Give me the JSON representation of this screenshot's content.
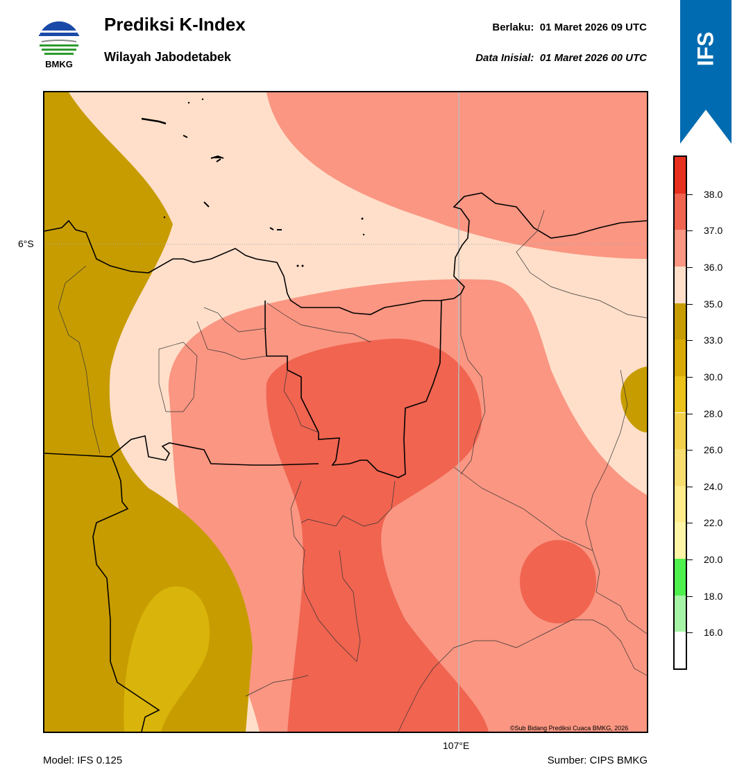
{
  "header": {
    "title": "Prediksi K-Index",
    "subtitle": "Wilayah Jabodetabek",
    "valid_label": "Berlaku:",
    "valid_time": "01 Maret 2026 09 UTC",
    "init_label": "Data Inisial:",
    "init_time": "01 Maret 2026 00 UTC"
  },
  "logo": {
    "text": "BMKG",
    "icon": "bmkg-logo-icon"
  },
  "ribbon": {
    "label": "IFS",
    "color": "#006bb0"
  },
  "map": {
    "lat_label": "6°S",
    "lon_label": "107°E",
    "copyright": "©Sub Bidang Prediksi Cuaca BMKG, 2026"
  },
  "footer": {
    "model": "Model: IFS 0.125",
    "source": "Sumber: CIPS BMKG"
  },
  "colorbar": {
    "ticks": [
      "16.0",
      "18.0",
      "20.0",
      "22.0",
      "24.0",
      "26.0",
      "28.0",
      "30.0",
      "33.0",
      "35.0",
      "36.0",
      "37.0",
      "38.0"
    ],
    "colors": [
      "#ffffff",
      "#a6f5a6",
      "#4ef04e",
      "#fff5a6",
      "#ffeb8a",
      "#f7dc6e",
      "#f2d04a",
      "#eac21a",
      "#d9aa05",
      "#c79c00",
      "#ffdfca",
      "#fa9682",
      "#f06450",
      "#e8301e"
    ]
  }
}
